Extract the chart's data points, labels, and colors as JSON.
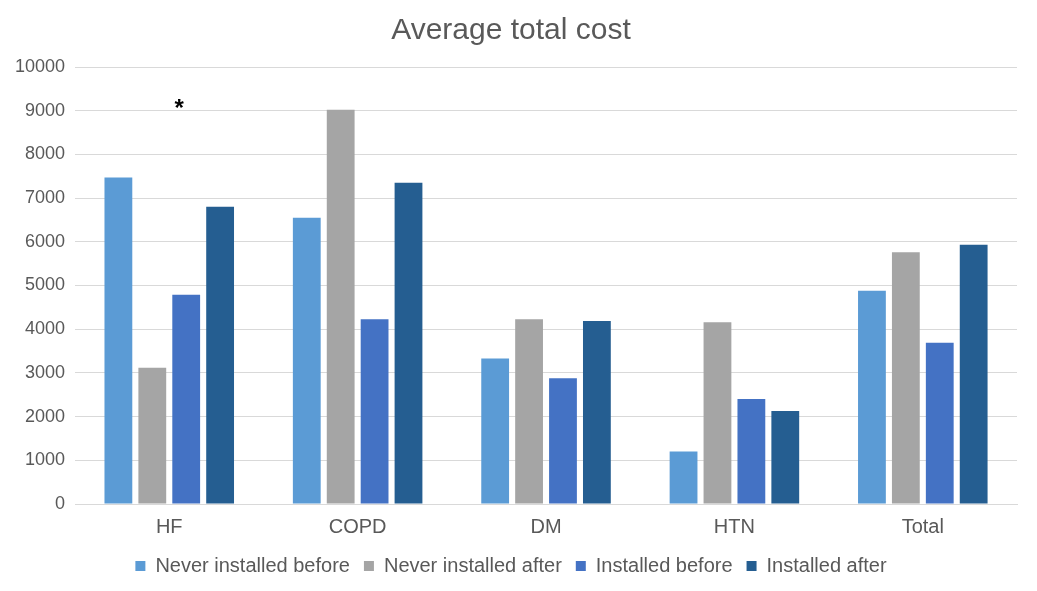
{
  "chart_data": {
    "type": "bar",
    "title": "Average total cost",
    "categories": [
      "HF",
      "COPD",
      "DM",
      "HTN",
      "Total"
    ],
    "series": [
      {
        "name": "Never installed before",
        "color": "#5b9bd5",
        "values": [
          7470,
          6550,
          3330,
          1200,
          4880
        ]
      },
      {
        "name": "Never installed after",
        "color": "#a5a5a5",
        "values": [
          3120,
          9020,
          4230,
          4160,
          5760
        ]
      },
      {
        "name": "Installed before",
        "color": "#4472c4",
        "values": [
          4790,
          4230,
          2880,
          2400,
          3690
        ]
      },
      {
        "name": "Installed after",
        "color": "#255e91",
        "values": [
          6800,
          7350,
          4190,
          2130,
          5930
        ]
      }
    ],
    "ylim": [
      0,
      10000
    ],
    "yticks": [
      0,
      1000,
      2000,
      3000,
      4000,
      5000,
      6000,
      7000,
      8000,
      9000,
      10000
    ],
    "grid": "y",
    "legend": "bottom",
    "annotations": [
      "*"
    ]
  }
}
